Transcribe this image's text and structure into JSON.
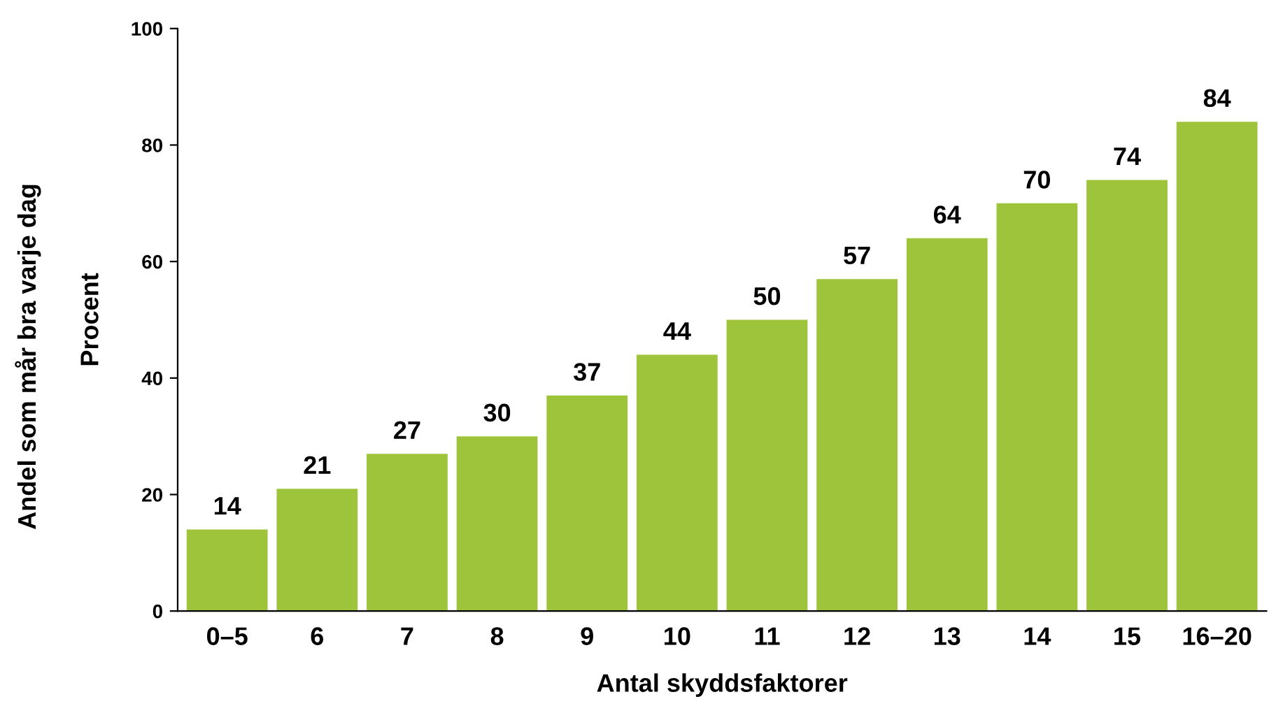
{
  "chart_data": {
    "type": "bar",
    "categories": [
      "0–5",
      "6",
      "7",
      "8",
      "9",
      "10",
      "11",
      "12",
      "13",
      "14",
      "15",
      "16–20"
    ],
    "values": [
      14,
      21,
      27,
      30,
      37,
      44,
      50,
      57,
      64,
      70,
      74,
      84
    ],
    "color": "#9dc43a",
    "xlabel": "Antal skyddsfaktorer",
    "ylabel": "Procent",
    "annotations": [
      "Andel som mår bra varje dag"
    ],
    "ylim": [
      0,
      100
    ],
    "yticks": [
      0,
      20,
      40,
      60,
      80,
      100
    ],
    "grid": false,
    "legend": false,
    "data_labels": true
  }
}
